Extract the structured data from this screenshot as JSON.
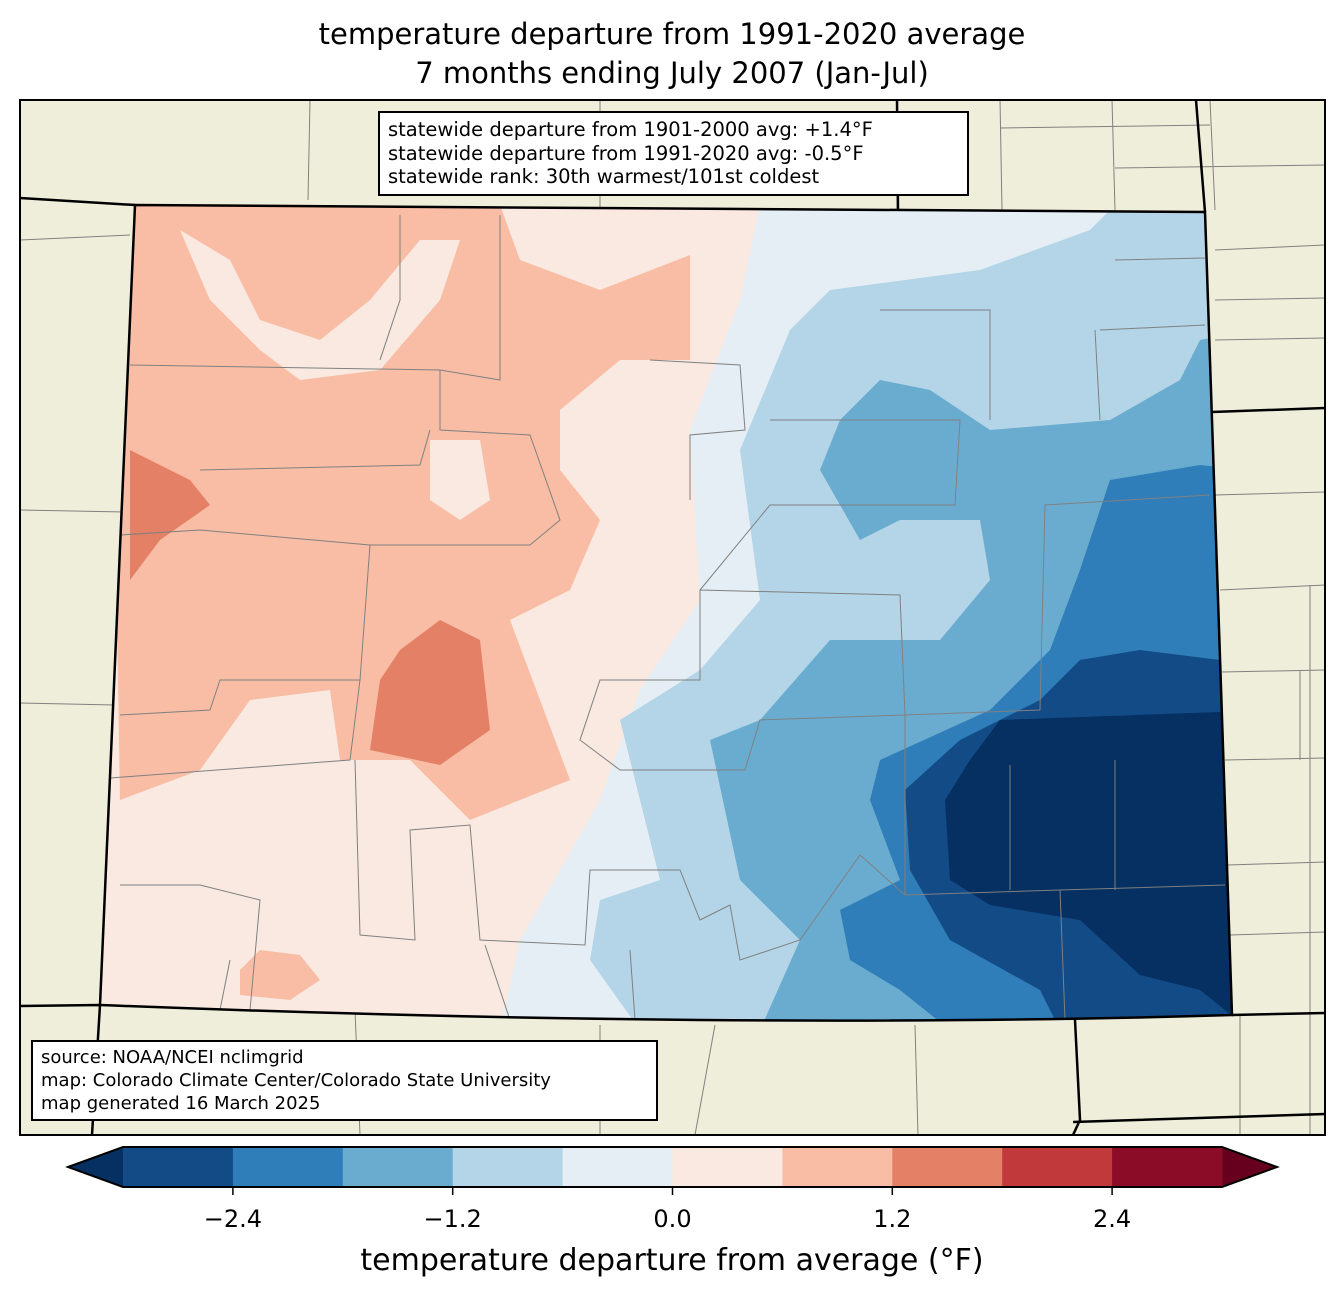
{
  "title": {
    "line1": "temperature departure from 1991-2020 average",
    "line2": "7 months ending July 2007 (Jan-Jul)"
  },
  "info_box": {
    "line1": "statewide departure from 1901-2000 avg: +1.4°F",
    "line2": "statewide departure from 1991-2020 avg: -0.5°F",
    "line3": "statewide rank: 30th warmest/101st coldest"
  },
  "source_box": {
    "line1": "source: NOAA/NCEI nclimgrid",
    "line2": "map: Colorado Climate Center/Colorado State University",
    "line3": "map generated 16 March 2025"
  },
  "colorbar": {
    "label": "temperature departure from average (°F)",
    "min": -3.0,
    "max": 3.0,
    "bins": [
      {
        "from": -3.0,
        "to": -2.4,
        "color": "#134b87"
      },
      {
        "from": -2.4,
        "to": -1.8,
        "color": "#2f7db9"
      },
      {
        "from": -1.8,
        "to": -1.2,
        "color": "#6aacd0"
      },
      {
        "from": -1.2,
        "to": -0.6,
        "color": "#b3d5e7"
      },
      {
        "from": -0.6,
        "to": 0.0,
        "color": "#e5eef4"
      },
      {
        "from": 0.0,
        "to": 0.6,
        "color": "#f9e9e0"
      },
      {
        "from": 0.6,
        "to": 1.2,
        "color": "#f8bda4"
      },
      {
        "from": 1.2,
        "to": 1.8,
        "color": "#e48066"
      },
      {
        "from": 1.8,
        "to": 2.4,
        "color": "#c2393c"
      },
      {
        "from": 2.4,
        "to": 3.0,
        "color": "#8a0c27"
      }
    ],
    "under_color": "#053061",
    "over_color": "#67001f",
    "ticks": [
      {
        "value": -2.4,
        "label": "−2.4"
      },
      {
        "value": -1.2,
        "label": "−1.2"
      },
      {
        "value": 0.0,
        "label": "0.0"
      },
      {
        "value": 1.2,
        "label": "1.2"
      },
      {
        "value": 2.4,
        "label": "2.4"
      }
    ]
  },
  "map_colors": {
    "land": "#efeedb",
    "county_lines": "#808080"
  }
}
